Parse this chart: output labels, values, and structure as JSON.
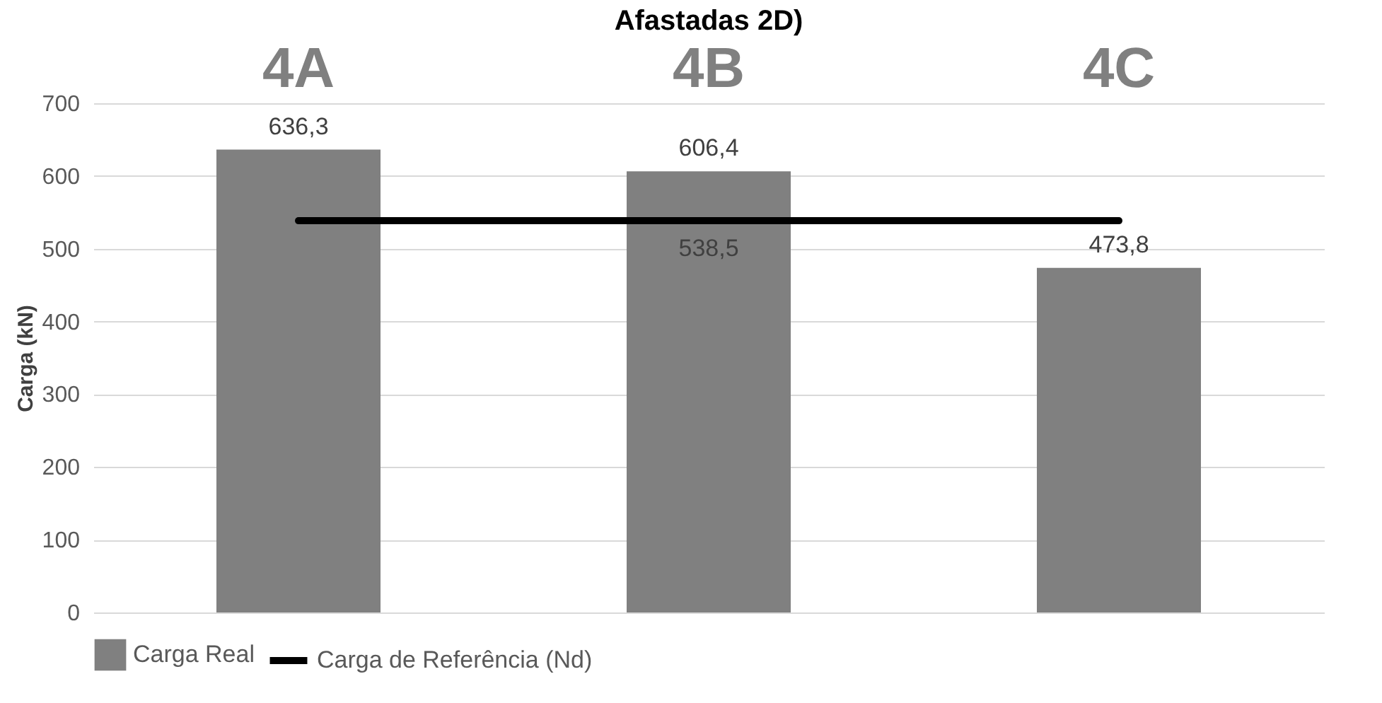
{
  "chart_data": {
    "type": "bar",
    "title": "Afastadas 2D)",
    "ylabel": "Carga (kN)",
    "categories": [
      "4A",
      "4B",
      "4C"
    ],
    "series": [
      {
        "name": "Carga Real",
        "color": "#808080",
        "values": [
          636.3,
          606.4,
          473.8
        ],
        "value_labels": [
          "636,3",
          "606,4",
          "473,8"
        ]
      },
      {
        "name": "Carga de Referência (Nd)",
        "type": "line",
        "color": "#000000",
        "values": [
          538.5,
          538.5,
          538.5
        ],
        "value_labels": [
          null,
          "538,5",
          null
        ]
      }
    ],
    "ylim": [
      0,
      700
    ],
    "yticks": [
      0,
      100,
      200,
      300,
      400,
      500,
      600,
      700
    ],
    "grid": "y",
    "legend": "bottom"
  }
}
